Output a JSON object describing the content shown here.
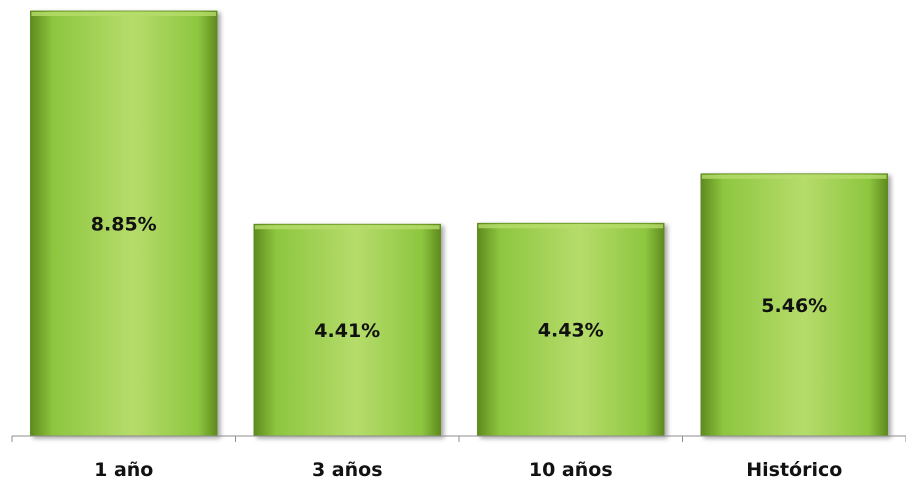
{
  "chart_data": {
    "type": "bar",
    "categories": [
      "1 año",
      "3 años",
      "10 años",
      "Histórico"
    ],
    "values": [
      8.85,
      4.41,
      4.43,
      5.46
    ],
    "data_labels": [
      "8.85%",
      "4.41%",
      "4.43%",
      "5.46%"
    ],
    "title": "",
    "xlabel": "",
    "ylabel": "",
    "ylim": [
      0,
      8.85
    ],
    "grid": false,
    "legend": "none",
    "bar_color": "#8dc63f",
    "bar_color_light": "#b6dc6b",
    "bar_color_dark": "#5f8a1e"
  }
}
